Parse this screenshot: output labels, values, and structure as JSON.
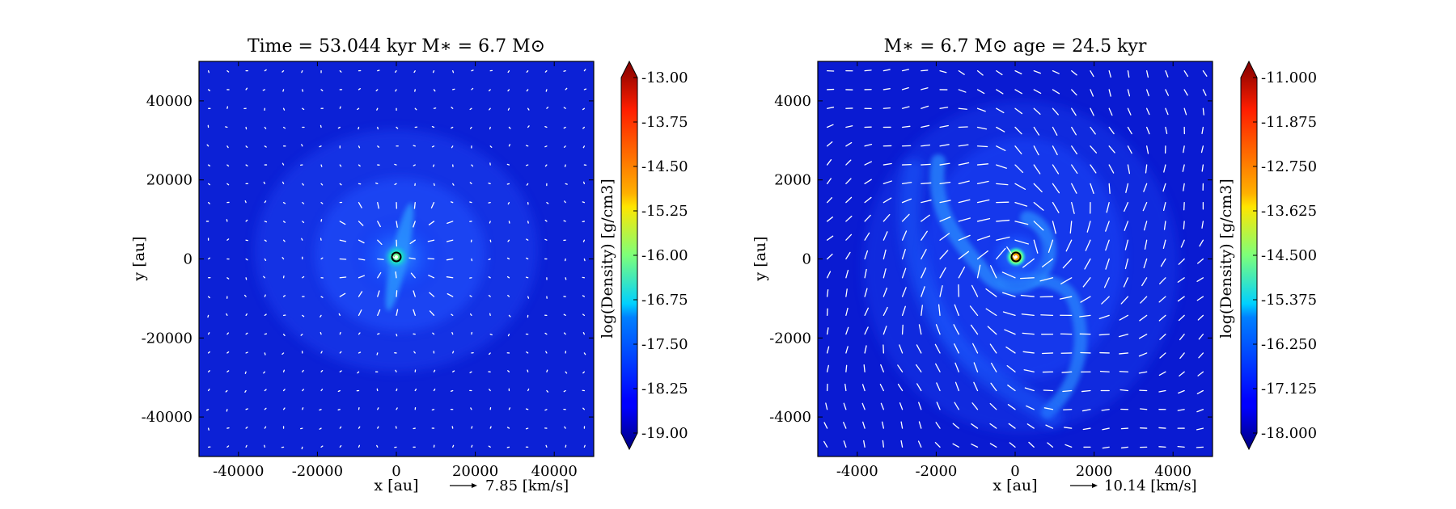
{
  "chart_data": [
    {
      "type": "heatmap",
      "title": "Time = 53.044 kyr    M∗ = 6.7 M⊙",
      "xlabel": "x [au]",
      "ylabel": "y [au]",
      "xlim": [
        -50000,
        50000
      ],
      "ylim": [
        -50000,
        50000
      ],
      "xticks": [
        -40000,
        -20000,
        0,
        20000,
        40000
      ],
      "xtick_labels": [
        "-40000",
        "-20000",
        "0",
        "20000",
        "40000"
      ],
      "yticks": [
        40000,
        20000,
        0,
        -20000,
        -40000
      ],
      "ytick_labels": [
        "40000",
        "20000",
        "0",
        "-20000",
        "-40000"
      ],
      "velocity_key": "7.85 [km/s]",
      "star_position": [
        0,
        0
      ],
      "colorbar": {
        "label": "log(Density) [g/cm3]",
        "range": [
          -19.0,
          -13.0
        ],
        "ticks": [
          -13.0,
          -13.75,
          -14.5,
          -15.25,
          -16.0,
          -16.75,
          -17.5,
          -18.25,
          -19.0
        ],
        "tick_labels": [
          "-13.00",
          "-13.75",
          "-14.50",
          "-15.25",
          "-16.00",
          "-16.75",
          "-17.50",
          "-18.25",
          "-19.00"
        ],
        "extend": "both"
      }
    },
    {
      "type": "heatmap",
      "title": "M∗ = 6.7 M⊙         age = 24.5 kyr",
      "xlabel": "x [au]",
      "ylabel": "y [au]",
      "xlim": [
        -5000,
        5000
      ],
      "ylim": [
        -5000,
        5000
      ],
      "xticks": [
        -4000,
        -2000,
        0,
        2000,
        4000
      ],
      "xtick_labels": [
        "-4000",
        "-2000",
        "0",
        "2000",
        "4000"
      ],
      "yticks": [
        4000,
        2000,
        0,
        -2000,
        -4000
      ],
      "ytick_labels": [
        "4000",
        "2000",
        "0",
        "-2000",
        "-4000"
      ],
      "velocity_key": "10.14 [km/s]",
      "star_position": [
        0,
        0
      ],
      "colorbar": {
        "label": "log(Density) [g/cm3]",
        "range": [
          -18.0,
          -11.0
        ],
        "ticks": [
          -11.0,
          -11.875,
          -12.75,
          -13.625,
          -14.5,
          -15.375,
          -16.25,
          -17.125,
          -18.0
        ],
        "tick_labels": [
          "-11.000",
          "-11.875",
          "-12.750",
          "-13.625",
          "-14.500",
          "-15.375",
          "-16.250",
          "-17.125",
          "-18.000"
        ],
        "extend": "both"
      }
    }
  ]
}
